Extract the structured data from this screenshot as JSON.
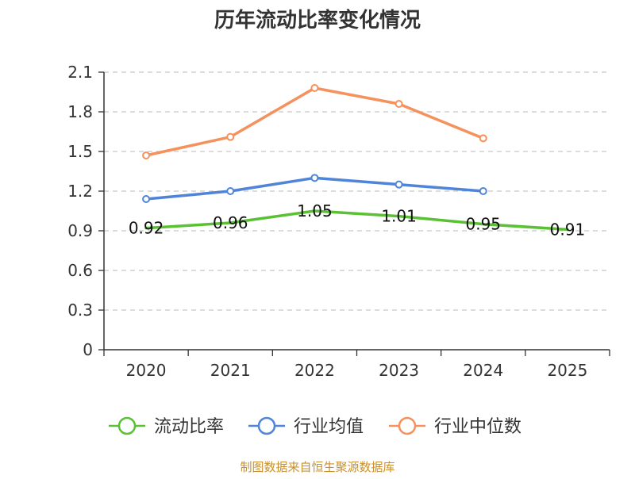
{
  "chart_data": {
    "type": "line",
    "title": "历年流动比率变化情况",
    "categories": [
      "2020",
      "2021",
      "2022",
      "2023",
      "2024",
      "2025"
    ],
    "ylim": [
      0,
      2.1
    ],
    "yticks": [
      "0",
      "0.3",
      "0.6",
      "0.9",
      "1.2",
      "1.5",
      "1.8",
      "2.1"
    ],
    "grid": true,
    "legend_position": "bottom",
    "series": [
      {
        "name": "流动比率",
        "color": "#5ac134",
        "values": [
          0.92,
          0.96,
          1.05,
          1.01,
          0.95,
          0.91
        ],
        "data_labels": [
          "0.92",
          "0.96",
          "1.05",
          "1.01",
          "0.95",
          "0.91"
        ],
        "markers": false
      },
      {
        "name": "行业均值",
        "color": "#4f84d8",
        "values": [
          1.14,
          1.2,
          1.3,
          1.25,
          1.2,
          null
        ],
        "markers": true
      },
      {
        "name": "行业中位数",
        "color": "#f5915c",
        "values": [
          1.47,
          1.61,
          1.98,
          1.86,
          1.6,
          null
        ],
        "markers": true
      }
    ]
  },
  "footer": {
    "source": "制图数据来自恒生聚源数据库",
    "source_color": "#c8902d"
  }
}
